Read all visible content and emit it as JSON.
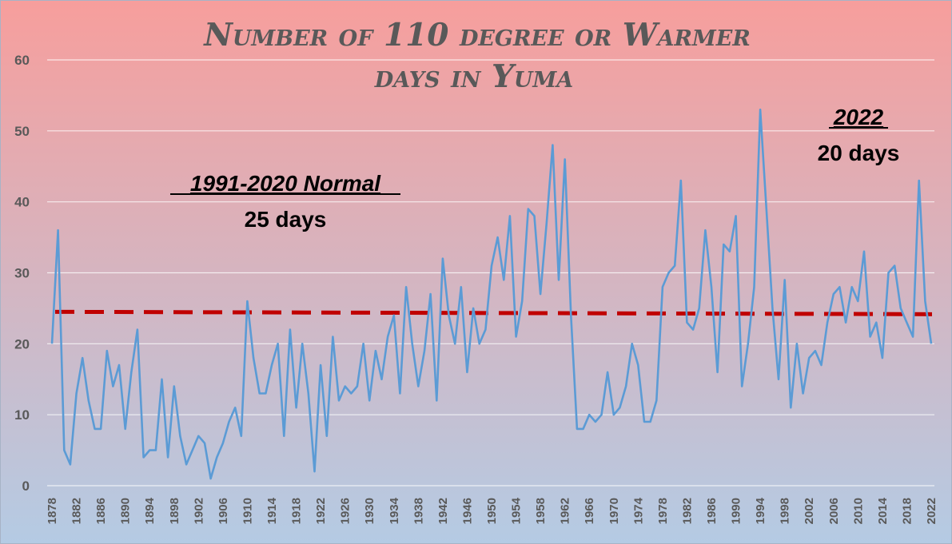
{
  "chart_data": {
    "type": "line",
    "title": "Number of 110 degree or Warmer days in Yuma",
    "title_line1": "Number of 110 degree or Warmer",
    "title_line2": "days in Yuma",
    "xlabel": "",
    "ylabel": "",
    "ylim": [
      0,
      60
    ],
    "yticks": [
      "0",
      "10",
      "20",
      "30",
      "40",
      "50",
      "60"
    ],
    "xlim": [
      1878,
      2022
    ],
    "xtick_step": 4,
    "grid": true,
    "legend": "none",
    "series": [
      {
        "color": "#5b9bd5",
        "x_start": 1878,
        "values": [
          20,
          36,
          5,
          3,
          13,
          18,
          12,
          8,
          8,
          19,
          14,
          17,
          8,
          16,
          22,
          4,
          5,
          5,
          15,
          4,
          14,
          7,
          3,
          5,
          7,
          6,
          1,
          4,
          6,
          9,
          11,
          7,
          26,
          18,
          13,
          13,
          17,
          20,
          7,
          22,
          11,
          20,
          13,
          2,
          17,
          7,
          21,
          12,
          14,
          13,
          14,
          20,
          12,
          19,
          15,
          21,
          24,
          13,
          28,
          20,
          14,
          19,
          27,
          12,
          32,
          24,
          20,
          28,
          16,
          25,
          20,
          22,
          31,
          35,
          29,
          38,
          21,
          26,
          39,
          38,
          27,
          37,
          48,
          29,
          46,
          24,
          8,
          8,
          10,
          9,
          10,
          16,
          10,
          11,
          14,
          20,
          17,
          9,
          9,
          12,
          28,
          30,
          31,
          43,
          23,
          22,
          25,
          36,
          28,
          16,
          34,
          33,
          38,
          14,
          20,
          28,
          53,
          39,
          25,
          15,
          29,
          11,
          20,
          13,
          18,
          19,
          17,
          23,
          27,
          28,
          23,
          28,
          26,
          33,
          21,
          23,
          18,
          30,
          31,
          25,
          23,
          21,
          43,
          26,
          20
        ]
      }
    ],
    "normal": {
      "value": 24.5,
      "color": "#c00000",
      "label": "1991-2020 Normal",
      "sublabel": "25 days"
    },
    "annotation_2022": {
      "label": "2022",
      "sublabel": "20 days"
    },
    "background": {
      "top": "#f79e9c",
      "bottom": "#b4cbe4"
    }
  }
}
